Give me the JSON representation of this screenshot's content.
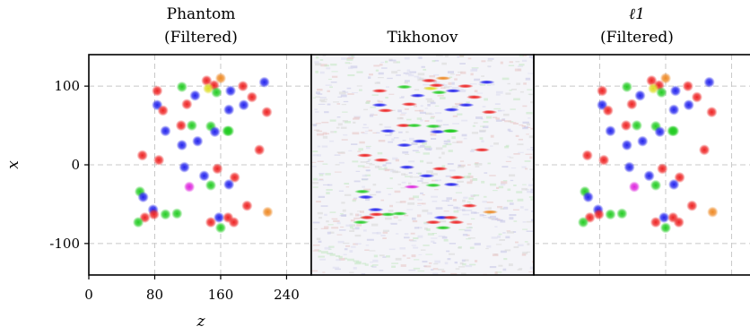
{
  "chart_data": {
    "type": "scatter",
    "panels": [
      {
        "title_line1": "Phantom",
        "title_line2": "(Filtered)",
        "style": "clean"
      },
      {
        "title_line1": "",
        "title_line2": "Tikhonov",
        "style": "noisy"
      },
      {
        "title_line1": "ℓ1",
        "title_line2": "(Filtered)",
        "style": "clean"
      }
    ],
    "xlabel": "z",
    "ylabel": "x",
    "xlim": [
      0,
      270
    ],
    "ylim": [
      -140,
      140
    ],
    "xticks": [
      "0",
      "80",
      "160",
      "240"
    ],
    "xtick_values": [
      0,
      80,
      160,
      240
    ],
    "yticks": [
      "100",
      "0",
      "-100"
    ],
    "ytick_values": [
      100,
      0,
      -100
    ],
    "grid": true,
    "colors": {
      "red": "#ee2222",
      "green": "#22cc22",
      "blue": "#2222ee",
      "magenta": "#dd22dd",
      "orange": "#ee8822",
      "yellow": "#dddd22"
    },
    "points": [
      {
        "z": 160,
        "x": 110,
        "c": "orange"
      },
      {
        "z": 143,
        "x": 107,
        "c": "red"
      },
      {
        "z": 213,
        "x": 105,
        "c": "blue"
      },
      {
        "z": 113,
        "x": 99,
        "c": "green"
      },
      {
        "z": 152,
        "x": 101,
        "c": "red"
      },
      {
        "z": 187,
        "x": 100,
        "c": "red"
      },
      {
        "z": 83,
        "x": 94,
        "c": "red"
      },
      {
        "z": 145,
        "x": 97,
        "c": "yellow"
      },
      {
        "z": 155,
        "x": 92,
        "c": "green"
      },
      {
        "z": 172,
        "x": 94,
        "c": "blue"
      },
      {
        "z": 198,
        "x": 86,
        "c": "red"
      },
      {
        "z": 129,
        "x": 88,
        "c": "blue"
      },
      {
        "z": 83,
        "x": 76,
        "c": "blue"
      },
      {
        "z": 119,
        "x": 77,
        "c": "red"
      },
      {
        "z": 188,
        "x": 76,
        "c": "blue"
      },
      {
        "z": 90,
        "x": 69,
        "c": "red"
      },
      {
        "z": 170,
        "x": 70,
        "c": "blue"
      },
      {
        "z": 216,
        "x": 67,
        "c": "red"
      },
      {
        "z": 112,
        "x": 50,
        "c": "red"
      },
      {
        "z": 125,
        "x": 50,
        "c": "green"
      },
      {
        "z": 148,
        "x": 49,
        "c": "green"
      },
      {
        "z": 93,
        "x": 43,
        "c": "blue"
      },
      {
        "z": 153,
        "x": 42,
        "c": "blue"
      },
      {
        "z": 170,
        "x": 43,
        "c": "green"
      },
      {
        "z": 168,
        "x": 43,
        "c": "green"
      },
      {
        "z": 132,
        "x": 30,
        "c": "blue"
      },
      {
        "z": 113,
        "x": 25,
        "c": "blue"
      },
      {
        "z": 207,
        "x": 19,
        "c": "red"
      },
      {
        "z": 65,
        "x": 12,
        "c": "red"
      },
      {
        "z": 85,
        "x": 6,
        "c": "red"
      },
      {
        "z": 116,
        "x": -3,
        "c": "blue"
      },
      {
        "z": 156,
        "x": -5,
        "c": "red"
      },
      {
        "z": 140,
        "x": -14,
        "c": "blue"
      },
      {
        "z": 177,
        "x": -16,
        "c": "red"
      },
      {
        "z": 148,
        "x": -26,
        "c": "green"
      },
      {
        "z": 170,
        "x": -25,
        "c": "blue"
      },
      {
        "z": 122,
        "x": -28,
        "c": "magenta"
      },
      {
        "z": 62,
        "x": -34,
        "c": "green"
      },
      {
        "z": 66,
        "x": -41,
        "c": "blue"
      },
      {
        "z": 192,
        "x": -52,
        "c": "red"
      },
      {
        "z": 78,
        "x": -57,
        "c": "blue"
      },
      {
        "z": 217,
        "x": -60,
        "c": "orange"
      },
      {
        "z": 93,
        "x": -63,
        "c": "green"
      },
      {
        "z": 79,
        "x": -63,
        "c": "red"
      },
      {
        "z": 107,
        "x": -62,
        "c": "green"
      },
      {
        "z": 68,
        "x": -67,
        "c": "red"
      },
      {
        "z": 158,
        "x": -67,
        "c": "blue"
      },
      {
        "z": 169,
        "x": -67,
        "c": "red"
      },
      {
        "z": 148,
        "x": -73,
        "c": "red"
      },
      {
        "z": 60,
        "x": -73,
        "c": "green"
      },
      {
        "z": 176,
        "x": -73,
        "c": "red"
      },
      {
        "z": 160,
        "x": -80,
        "c": "green"
      }
    ]
  }
}
